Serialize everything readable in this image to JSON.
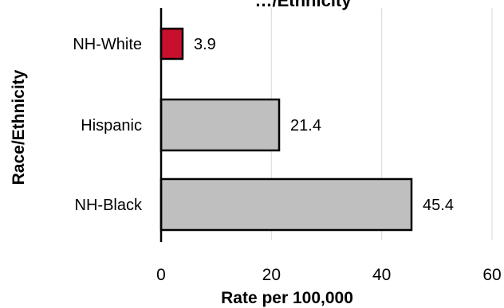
{
  "chart_data": {
    "type": "bar",
    "orientation": "horizontal",
    "title": "…/Ethnicity",
    "xlabel": "Rate per 100,000",
    "ylabel": "Race/Ethnicity",
    "categories": [
      "NH-White",
      "Hispanic",
      "NH-Black"
    ],
    "values": [
      3.9,
      21.4,
      45.4
    ],
    "data_labels": [
      "3.9",
      "21.4",
      "45.4"
    ],
    "xlim": [
      0,
      60
    ],
    "xticks": [
      "0",
      "20",
      "40",
      "60"
    ],
    "grid": true,
    "bar_colors": [
      "#c8102e",
      "#bfbfbf",
      "#bfbfbf"
    ],
    "bar_edge_color": "#000000",
    "grid_color": "#d9d9d9"
  }
}
